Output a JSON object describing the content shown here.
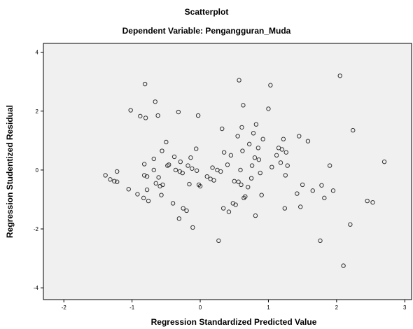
{
  "chart_data": {
    "type": "scatter",
    "title": "Scatterplot",
    "subtitle": "Dependent Variable: Pengangguran_Muda",
    "xlabel": "Regression Standardized Predicted Value",
    "ylabel": "Regression Studentized Residual",
    "xlim": [
      -2.3,
      3.1
    ],
    "ylim": [
      -4.4,
      4.3
    ],
    "xticks": [
      -2,
      -1,
      0,
      1,
      2,
      3
    ],
    "yticks": [
      -4,
      -2,
      0,
      2,
      4
    ],
    "grid": false,
    "marker": "hollow-circle",
    "colors": {
      "plot_bg": "#f0f0f0",
      "marker": "#333333",
      "axis": "#000000"
    },
    "points": [
      {
        "x": -1.39,
        "y": -0.18
      },
      {
        "x": -1.32,
        "y": -0.32
      },
      {
        "x": -1.26,
        "y": -0.38
      },
      {
        "x": -1.22,
        "y": -0.05
      },
      {
        "x": -1.22,
        "y": -0.4
      },
      {
        "x": -1.05,
        "y": -0.65
      },
      {
        "x": -1.02,
        "y": 2.03
      },
      {
        "x": -0.92,
        "y": -0.82
      },
      {
        "x": -0.88,
        "y": 1.83
      },
      {
        "x": -0.83,
        "y": -0.95
      },
      {
        "x": -0.82,
        "y": 0.2
      },
      {
        "x": -0.82,
        "y": -0.18
      },
      {
        "x": -0.81,
        "y": 2.92
      },
      {
        "x": -0.8,
        "y": 1.77
      },
      {
        "x": -0.78,
        "y": -0.22
      },
      {
        "x": -0.78,
        "y": -0.67
      },
      {
        "x": -0.76,
        "y": -1.05
      },
      {
        "x": -0.68,
        "y": 0.38
      },
      {
        "x": -0.68,
        "y": 0.0
      },
      {
        "x": -0.66,
        "y": 2.32
      },
      {
        "x": -0.65,
        "y": -0.45
      },
      {
        "x": -0.62,
        "y": 1.85
      },
      {
        "x": -0.61,
        "y": -0.25
      },
      {
        "x": -0.59,
        "y": -0.55
      },
      {
        "x": -0.57,
        "y": -0.85
      },
      {
        "x": -0.56,
        "y": 0.65
      },
      {
        "x": -0.55,
        "y": -0.5
      },
      {
        "x": -0.5,
        "y": 0.95
      },
      {
        "x": -0.48,
        "y": 0.15
      },
      {
        "x": -0.46,
        "y": 0.18
      },
      {
        "x": -0.4,
        "y": -1.13
      },
      {
        "x": -0.38,
        "y": 0.45
      },
      {
        "x": -0.36,
        "y": 0.0
      },
      {
        "x": -0.32,
        "y": 1.97
      },
      {
        "x": -0.31,
        "y": -1.65
      },
      {
        "x": -0.3,
        "y": -0.05
      },
      {
        "x": -0.29,
        "y": 0.28
      },
      {
        "x": -0.26,
        "y": -0.1
      },
      {
        "x": -0.25,
        "y": -1.3
      },
      {
        "x": -0.2,
        "y": -1.38
      },
      {
        "x": -0.18,
        "y": 0.15
      },
      {
        "x": -0.16,
        "y": -0.48
      },
      {
        "x": -0.14,
        "y": 0.42
      },
      {
        "x": -0.12,
        "y": 0.05
      },
      {
        "x": -0.11,
        "y": -1.95
      },
      {
        "x": -0.06,
        "y": 0.72
      },
      {
        "x": -0.05,
        "y": -0.02
      },
      {
        "x": -0.03,
        "y": 1.85
      },
      {
        "x": -0.02,
        "y": -0.5
      },
      {
        "x": 0.0,
        "y": -0.55
      },
      {
        "x": 0.1,
        "y": -0.22
      },
      {
        "x": 0.15,
        "y": -0.3
      },
      {
        "x": 0.18,
        "y": 0.08
      },
      {
        "x": 0.2,
        "y": -0.35
      },
      {
        "x": 0.25,
        "y": 0.0
      },
      {
        "x": 0.27,
        "y": -2.4
      },
      {
        "x": 0.3,
        "y": -0.05
      },
      {
        "x": 0.32,
        "y": 1.4
      },
      {
        "x": 0.34,
        "y": -1.3
      },
      {
        "x": 0.35,
        "y": 0.6
      },
      {
        "x": 0.4,
        "y": 0.18
      },
      {
        "x": 0.42,
        "y": -1.42
      },
      {
        "x": 0.45,
        "y": 0.5
      },
      {
        "x": 0.48,
        "y": -1.13
      },
      {
        "x": 0.5,
        "y": -0.38
      },
      {
        "x": 0.52,
        "y": -1.18
      },
      {
        "x": 0.55,
        "y": 1.15
      },
      {
        "x": 0.56,
        "y": -0.4
      },
      {
        "x": 0.57,
        "y": 3.05
      },
      {
        "x": 0.59,
        "y": 0.0
      },
      {
        "x": 0.6,
        "y": -0.5
      },
      {
        "x": 0.61,
        "y": 1.45
      },
      {
        "x": 0.62,
        "y": 0.65
      },
      {
        "x": 0.63,
        "y": 2.2
      },
      {
        "x": 0.64,
        "y": -0.95
      },
      {
        "x": 0.66,
        "y": -0.9
      },
      {
        "x": 0.7,
        "y": -0.58
      },
      {
        "x": 0.72,
        "y": 0.88
      },
      {
        "x": 0.75,
        "y": -0.28
      },
      {
        "x": 0.76,
        "y": 0.15
      },
      {
        "x": 0.78,
        "y": 1.25
      },
      {
        "x": 0.8,
        "y": 0.42
      },
      {
        "x": 0.81,
        "y": -1.55
      },
      {
        "x": 0.82,
        "y": 1.55
      },
      {
        "x": 0.85,
        "y": 0.75
      },
      {
        "x": 0.86,
        "y": 0.35
      },
      {
        "x": 0.88,
        "y": -0.1
      },
      {
        "x": 0.9,
        "y": -0.85
      },
      {
        "x": 0.92,
        "y": 1.05
      },
      {
        "x": 1.0,
        "y": 2.08
      },
      {
        "x": 1.03,
        "y": 2.88
      },
      {
        "x": 1.05,
        "y": 0.1
      },
      {
        "x": 1.12,
        "y": 0.5
      },
      {
        "x": 1.15,
        "y": 0.75
      },
      {
        "x": 1.18,
        "y": 0.25
      },
      {
        "x": 1.2,
        "y": 0.7
      },
      {
        "x": 1.22,
        "y": 1.05
      },
      {
        "x": 1.24,
        "y": -1.3
      },
      {
        "x": 1.25,
        "y": -0.18
      },
      {
        "x": 1.26,
        "y": 0.6
      },
      {
        "x": 1.28,
        "y": 0.15
      },
      {
        "x": 1.42,
        "y": -0.8
      },
      {
        "x": 1.45,
        "y": 1.15
      },
      {
        "x": 1.47,
        "y": -1.25
      },
      {
        "x": 1.5,
        "y": -0.5
      },
      {
        "x": 1.58,
        "y": 0.98
      },
      {
        "x": 1.65,
        "y": -0.7
      },
      {
        "x": 1.76,
        "y": -2.4
      },
      {
        "x": 1.78,
        "y": -0.52
      },
      {
        "x": 1.82,
        "y": -0.95
      },
      {
        "x": 1.9,
        "y": 0.15
      },
      {
        "x": 1.95,
        "y": -0.7
      },
      {
        "x": 2.05,
        "y": 3.2
      },
      {
        "x": 2.1,
        "y": -3.25
      },
      {
        "x": 2.2,
        "y": -1.85
      },
      {
        "x": 2.24,
        "y": 1.35
      },
      {
        "x": 2.45,
        "y": -1.05
      },
      {
        "x": 2.53,
        "y": -1.1
      },
      {
        "x": 2.7,
        "y": 0.28
      }
    ]
  }
}
